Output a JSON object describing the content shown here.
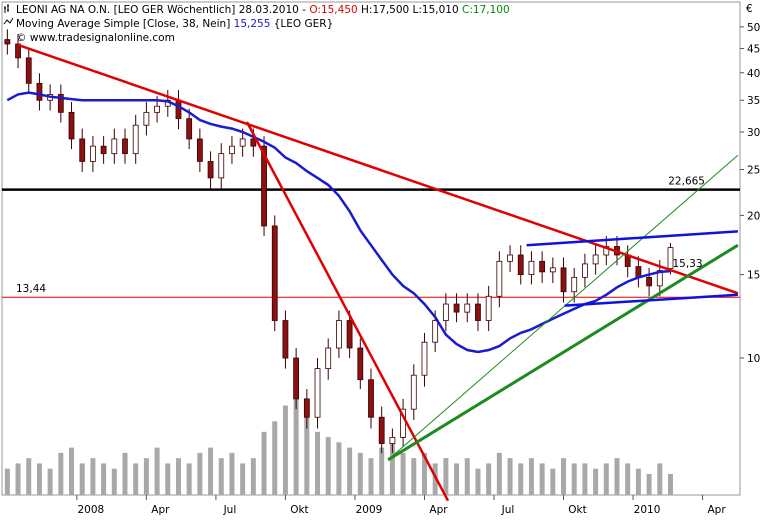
{
  "chart_data": {
    "type": "candlestick",
    "title": "LEONI AG NA O.N. [LEO GER  Wöchentlich] 28.03.2010 -",
    "quote": [
      "O:15,450",
      "H:17,500 L:15,010",
      "C:17,100"
    ],
    "quote_colors": [
      "#e00000",
      "#000000",
      "#008800"
    ],
    "copyright": "© www.tradesignalonline.com",
    "currency": "€",
    "log": true,
    "xlim": [
      0,
      138
    ],
    "xticks": [
      {
        "value": 14,
        "label": "2008"
      },
      {
        "value": 27,
        "label": "Apr"
      },
      {
        "value": 40,
        "label": "Jul"
      },
      {
        "value": 53,
        "label": "Okt"
      },
      {
        "value": 66,
        "label": "2009"
      },
      {
        "value": 79,
        "label": "Apr"
      },
      {
        "value": 92,
        "label": "Jul"
      },
      {
        "value": 105,
        "label": "Okt"
      },
      {
        "value": 118,
        "label": "2010"
      },
      {
        "value": 131,
        "label": "Apr"
      }
    ],
    "ylim": [
      5.14,
      55.6
    ],
    "yticks": [
      10,
      15,
      20,
      25,
      30,
      35,
      40,
      45,
      50
    ],
    "up_color": "#ffffff",
    "down_color": "#8b1010",
    "volume_color": "#a8a8a8",
    "x": [
      1,
      3,
      5,
      7,
      9,
      11,
      13,
      15,
      17,
      19,
      21,
      23,
      25,
      27,
      29,
      31,
      33,
      35,
      37,
      39,
      41,
      43,
      45,
      47,
      49,
      51,
      53,
      55,
      57,
      59,
      61,
      63,
      65,
      67,
      69,
      71,
      73,
      75,
      77,
      79,
      81,
      83,
      85,
      87,
      89,
      91,
      93,
      95,
      97,
      99,
      101,
      103,
      105,
      107,
      109,
      111,
      113,
      115,
      117,
      119,
      121,
      123,
      125
    ],
    "open": [
      47,
      46,
      43,
      38,
      35,
      36,
      33,
      29,
      26,
      28,
      27,
      29,
      27,
      31,
      33,
      34,
      35,
      32,
      29,
      26,
      24,
      27,
      28,
      29,
      28,
      19,
      12,
      10,
      8.2,
      7.5,
      9.5,
      10.5,
      12,
      10.5,
      9,
      7.5,
      6.6,
      6.8,
      7.8,
      9.2,
      10.8,
      12,
      13,
      12.5,
      13,
      12,
      13.5,
      16,
      16.5,
      15,
      16,
      15.2,
      15.5,
      13.8,
      14.8,
      15.8,
      16.5,
      17.2,
      16.5,
      15.6,
      14.8,
      14.2,
      15.45
    ],
    "high": [
      49.4,
      48.3,
      45.2,
      39.9,
      37.8,
      37.8,
      34.7,
      30.5,
      29.4,
      29.4,
      30.5,
      30.5,
      32.6,
      34.7,
      35.7,
      36.8,
      36.8,
      33.6,
      30.5,
      27.3,
      28.4,
      29.4,
      30.5,
      30.5,
      29.4,
      20,
      12.6,
      10.5,
      8.6,
      10,
      11,
      12.6,
      12.6,
      11,
      9.5,
      7.9,
      7.1,
      8.2,
      9.7,
      11.3,
      12.6,
      13.7,
      13.7,
      13.7,
      13.7,
      14.2,
      16.8,
      17.3,
      17.3,
      16.8,
      16.8,
      16.3,
      16.3,
      15.5,
      16.6,
      17.3,
      18.1,
      18.1,
      17.3,
      16.4,
      15.5,
      16.1,
      17.5
    ],
    "low": [
      43.7,
      40.9,
      36.1,
      33.3,
      33.3,
      31.4,
      27.6,
      24.7,
      24.7,
      25.7,
      25.7,
      25.7,
      25.7,
      29.5,
      31.4,
      32.3,
      30.4,
      27.6,
      24.7,
      22.8,
      22.8,
      25.7,
      26.6,
      26.6,
      18.1,
      11.4,
      9.5,
      7.8,
      7.1,
      7.1,
      9,
      10,
      10,
      8.6,
      7.1,
      6.3,
      6.3,
      6.5,
      7.4,
      8.7,
      10.3,
      11.4,
      11.9,
      11.9,
      11.4,
      11.4,
      12.8,
      15.2,
      14.3,
      14.3,
      14.4,
      14.4,
      13.1,
      13.1,
      14.1,
      15,
      15.7,
      15.7,
      14.8,
      14.1,
      13.5,
      13.5,
      15.01
    ],
    "close": [
      46,
      43,
      38,
      35,
      36,
      33,
      29,
      26,
      28,
      27,
      29,
      27,
      31,
      33,
      34,
      35,
      32,
      29,
      26,
      24,
      27,
      28,
      29,
      28,
      19,
      12,
      10,
      8.2,
      7.5,
      9.5,
      10.5,
      12,
      10.5,
      9,
      7.5,
      6.6,
      6.8,
      7.8,
      9.2,
      10.8,
      12,
      13,
      12.5,
      13,
      12,
      13.5,
      16,
      16.5,
      15,
      16,
      15.2,
      15.5,
      13.8,
      14.8,
      15.8,
      16.5,
      17.2,
      16.5,
      15.6,
      14.8,
      14.2,
      15.3,
      17.1
    ],
    "volume": [
      25,
      30,
      35,
      30,
      25,
      40,
      45,
      30,
      35,
      30,
      25,
      40,
      30,
      35,
      45,
      30,
      35,
      30,
      40,
      45,
      35,
      40,
      30,
      35,
      60,
      70,
      85,
      95,
      75,
      60,
      55,
      50,
      45,
      40,
      35,
      45,
      55,
      40,
      35,
      40,
      30,
      35,
      30,
      35,
      25,
      30,
      40,
      35,
      30,
      35,
      30,
      25,
      35,
      30,
      30,
      25,
      30,
      35,
      30,
      25,
      20,
      30,
      20
    ],
    "series": [
      {
        "name": "Moving Average Simple [Close, 38, Nein]",
        "value_label": "15,255",
        "source": "{LEO GER}",
        "color": "#1a1ad0",
        "values": [
          35,
          36,
          36.3,
          36,
          35.6,
          35.4,
          35.2,
          35,
          35,
          35,
          35,
          35,
          35,
          35,
          35,
          34.8,
          34,
          33,
          31.8,
          31.2,
          30.8,
          30.5,
          30,
          29.3,
          28.6,
          27.8,
          26.5,
          25.8,
          24.8,
          24,
          23.2,
          22,
          20.4,
          18.6,
          17.3,
          16.1,
          15,
          14.2,
          13.7,
          13,
          12.2,
          11.2,
          10.7,
          10.4,
          10.3,
          10.4,
          10.6,
          11,
          11.3,
          11.5,
          11.8,
          12.1,
          12.4,
          12.7,
          13,
          13.2,
          13.6,
          14.1,
          14.5,
          14.8,
          15,
          15.2,
          15.255
        ]
      }
    ],
    "levels": [
      {
        "value": 22.665,
        "label": "22,665",
        "color": "#000000",
        "width": 2.5
      },
      {
        "value": 13.44,
        "label": "13,44",
        "color": "#e00000",
        "width": 1
      }
    ],
    "trendlines": [
      {
        "color": "#e00000",
        "width": 2.5,
        "x": [
          3,
          137.6
        ],
        "y": [
          45.8,
          13.7
        ]
      },
      {
        "color": "#e00000",
        "width": 2.5,
        "x": [
          45.8,
          83.4
        ],
        "y": [
          31.5,
          5.0
        ]
      },
      {
        "color": "#1f8a1f",
        "width": 3,
        "x": [
          72.2,
          137.6
        ],
        "y": [
          6.1,
          17.3
        ]
      },
      {
        "color": "#1f8a1f",
        "width": 1,
        "x": [
          72.2,
          137.6
        ],
        "y": [
          6.1,
          26.8
        ]
      },
      {
        "color": "#1010e0",
        "width": 2.5,
        "x": [
          98.1,
          137.6
        ],
        "y": [
          17.3,
          18.5
        ]
      },
      {
        "color": "#1010e0",
        "width": 2.5,
        "x": [
          105.2,
          137.6
        ],
        "y": [
          12.9,
          13.6
        ]
      }
    ],
    "annotations": [
      {
        "x": 125,
        "value": 15.33,
        "label": "15,33",
        "color": "#e00000"
      }
    ]
  }
}
